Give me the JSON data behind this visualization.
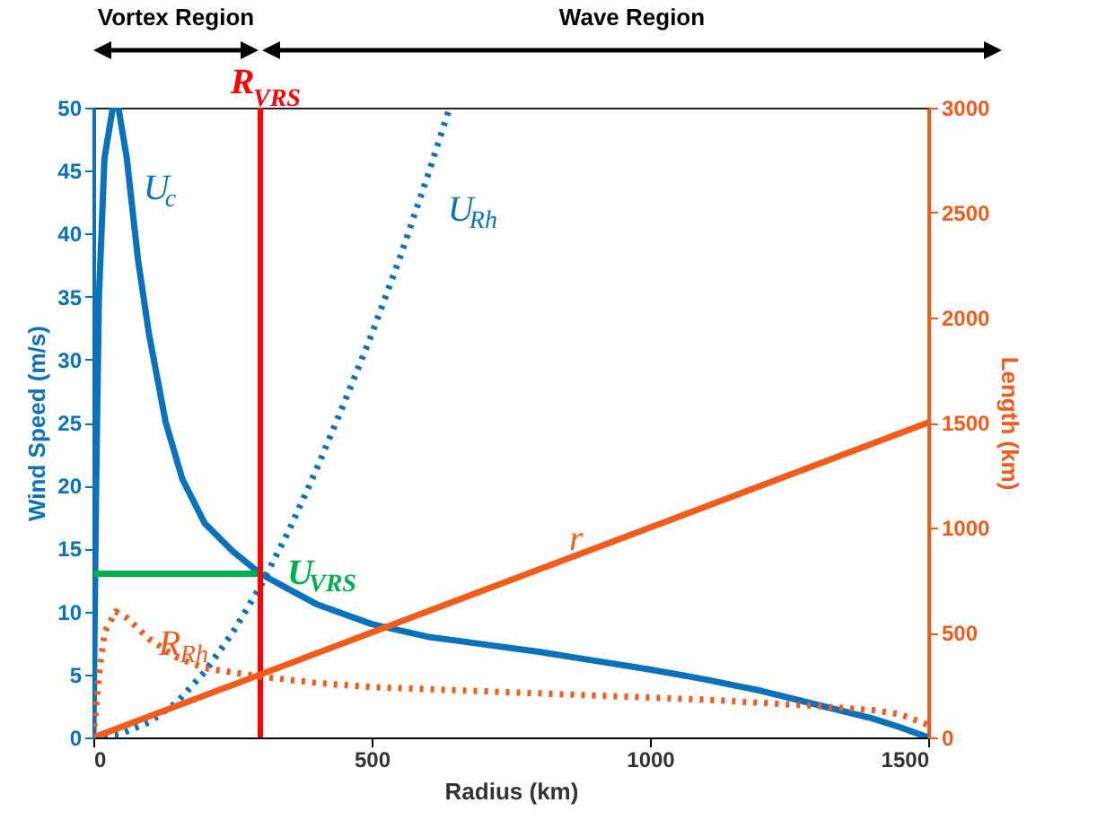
{
  "chart_data": {
    "type": "line",
    "xlabel": "Radius (km)",
    "ylabel": "Wind Speed (m/s)",
    "y2label": "Length (km)",
    "xlim": [
      0,
      1500
    ],
    "xticks": [
      0,
      500,
      1000,
      1500
    ],
    "ylim": [
      0,
      50
    ],
    "yticks": [
      0,
      5,
      10,
      15,
      20,
      25,
      30,
      35,
      40,
      45,
      50
    ],
    "y2lim": [
      0,
      3000
    ],
    "y2ticks": [
      0,
      500,
      1000,
      1500,
      2000,
      2500,
      3000
    ],
    "grid": false,
    "annotations": [
      "Vortex Region",
      "Wave Region"
    ],
    "ref_lines": [
      {
        "axis": "x",
        "value": 300,
        "label": "R$_{VRS}$",
        "color": "#ff0000"
      }
    ],
    "series": [
      {
        "name": "U$_{c}$",
        "color": "#0a72bd",
        "line_style": "solid",
        "x": [
          0,
          5,
          10,
          20,
          35,
          45,
          60,
          80,
          100,
          130,
          160,
          200,
          250,
          300,
          350,
          400,
          500,
          600,
          700,
          800,
          900,
          1000,
          1100,
          1200,
          1300,
          1400,
          1450,
          1500
        ],
        "values": [
          0,
          20,
          35,
          46,
          50,
          50,
          46,
          38,
          32,
          25,
          20.5,
          17,
          14.8,
          13,
          11.8,
          10.6,
          9,
          8,
          7.4,
          6.8,
          6.1,
          5.4,
          4.6,
          3.7,
          2.6,
          1.5,
          0.8,
          0
        ]
      },
      {
        "name": "U$_{Rh}$",
        "color": "#0a72bd",
        "line_style": "dotted",
        "x": [
          0,
          50,
          100,
          150,
          200,
          250,
          300,
          350,
          400,
          450,
          500,
          550,
          600,
          640
        ],
        "values": [
          0,
          0.3,
          1.2,
          2.8,
          5.2,
          8.3,
          12,
          16.3,
          21.2,
          26.5,
          32,
          38,
          44.5,
          50
        ]
      },
      {
        "name": "U$_{VRS}$",
        "color": "#00b050",
        "line_style": "solid",
        "x": [
          0,
          300
        ],
        "values": [
          13,
          13
        ]
      },
      {
        "name": "R$_{Rh}$",
        "color": "#f25b1a",
        "line_style": "dotted",
        "axis": "y2",
        "x": [
          0,
          10,
          20,
          40,
          60,
          100,
          150,
          200,
          300,
          400,
          500,
          700,
          900,
          1100,
          1300,
          1400,
          1450,
          1500
        ],
        "values": [
          0,
          300,
          500,
          600,
          570,
          470,
          380,
          330,
          290,
          260,
          240,
          220,
          200,
          180,
          150,
          130,
          110,
          60
        ]
      },
      {
        "name": "r",
        "color": "#f25b1a",
        "line_style": "solid",
        "axis": "y2",
        "x": [
          0,
          1500
        ],
        "values": [
          0,
          1500
        ]
      }
    ]
  }
}
